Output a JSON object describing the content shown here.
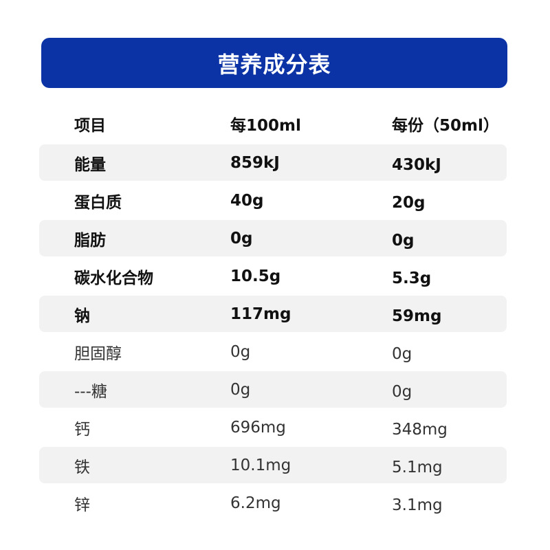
{
  "title": "营养成分表",
  "colors": {
    "header_bg": "#0b33a6",
    "row_shade": "#f2f2f2"
  },
  "header": {
    "item": "项目",
    "per100": "每100ml",
    "perServing": "每份（50ml）"
  },
  "rows": [
    {
      "item": "能量",
      "per100": "859kJ",
      "perServing": "430kJ",
      "bold": true
    },
    {
      "item": "蛋白质",
      "per100": "40g",
      "perServing": "20g",
      "bold": true
    },
    {
      "item": "脂肪",
      "per100": "0g",
      "perServing": "0g",
      "bold": true
    },
    {
      "item": "碳水化合物",
      "per100": "10.5g",
      "perServing": "5.3g",
      "bold": true
    },
    {
      "item": "钠",
      "per100": "117mg",
      "perServing": "59mg",
      "bold": true
    },
    {
      "item": "胆固醇",
      "per100": "0g",
      "perServing": "0g",
      "bold": false
    },
    {
      "item": "---糖",
      "per100": "0g",
      "perServing": "0g",
      "bold": false
    },
    {
      "item": "钙",
      "per100": "696mg",
      "perServing": "348mg",
      "bold": false
    },
    {
      "item": "铁",
      "per100": "10.1mg",
      "perServing": "5.1mg",
      "bold": false
    },
    {
      "item": "锌",
      "per100": "6.2mg",
      "perServing": "3.1mg",
      "bold": false
    }
  ]
}
